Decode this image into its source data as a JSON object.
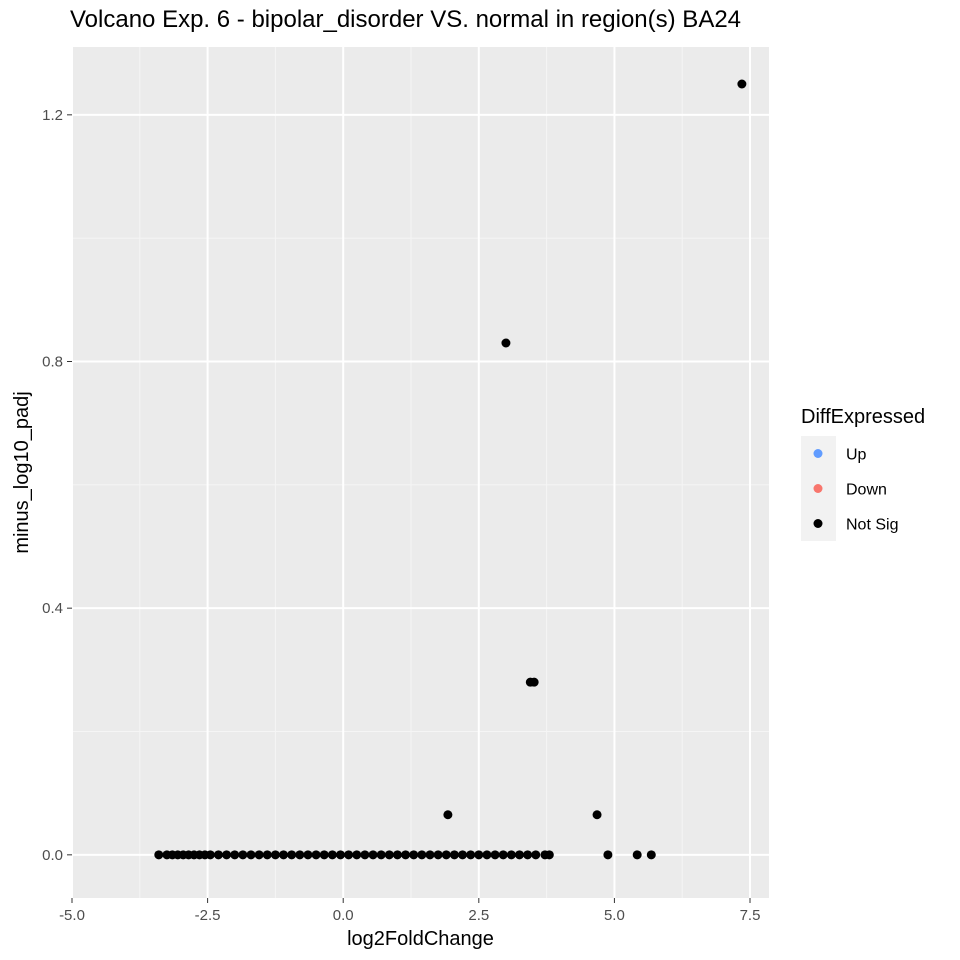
{
  "chart_data": {
    "type": "scatter",
    "title": "Volcano Exp. 6 - bipolar_disorder VS. normal in region(s) BA24",
    "xlabel": "log2FoldChange",
    "ylabel": "minus_log10_padj",
    "xlim": [
      -5.0,
      7.85
    ],
    "ylim": [
      -0.07,
      1.31
    ],
    "x_ticks": [
      -5.0,
      -2.5,
      0.0,
      2.5,
      5.0,
      7.5
    ],
    "x_tick_labels": [
      "-5.0",
      "-2.5",
      "0.0",
      "2.5",
      "5.0",
      "7.5"
    ],
    "y_ticks": [
      0.0,
      0.4,
      0.8,
      1.2
    ],
    "y_tick_labels": [
      "0.0",
      "0.4",
      "0.8",
      "1.2"
    ],
    "grid": true,
    "legend": {
      "title": "DiffExpressed",
      "placement": "right",
      "entries": [
        {
          "label": "Up",
          "color": "#619CFF"
        },
        {
          "label": "Down",
          "color": "#F8766D"
        },
        {
          "label": "Not Sig",
          "color": "#000000"
        }
      ]
    },
    "series": [
      {
        "name": "Up",
        "color": "#619CFF",
        "points": []
      },
      {
        "name": "Down",
        "color": "#F8766D",
        "points": []
      },
      {
        "name": "Not Sig",
        "color": "#000000",
        "points": [
          [
            7.35,
            1.25
          ],
          [
            3.0,
            0.83
          ],
          [
            3.45,
            0.28
          ],
          [
            3.52,
            0.28
          ],
          [
            1.93,
            0.065
          ],
          [
            4.68,
            0.065
          ],
          [
            -3.4,
            0.0
          ],
          [
            -3.25,
            0.0
          ],
          [
            -3.15,
            0.0
          ],
          [
            -3.05,
            0.0
          ],
          [
            -2.95,
            0.0
          ],
          [
            -2.85,
            0.0
          ],
          [
            -2.75,
            0.0
          ],
          [
            -2.65,
            0.0
          ],
          [
            -2.55,
            0.0
          ],
          [
            -2.45,
            0.0
          ],
          [
            -2.3,
            0.0
          ],
          [
            -2.15,
            0.0
          ],
          [
            -2.0,
            0.0
          ],
          [
            -1.85,
            0.0
          ],
          [
            -1.7,
            0.0
          ],
          [
            -1.55,
            0.0
          ],
          [
            -1.4,
            0.0
          ],
          [
            -1.25,
            0.0
          ],
          [
            -1.1,
            0.0
          ],
          [
            -0.95,
            0.0
          ],
          [
            -0.8,
            0.0
          ],
          [
            -0.65,
            0.0
          ],
          [
            -0.5,
            0.0
          ],
          [
            -0.35,
            0.0
          ],
          [
            -0.2,
            0.0
          ],
          [
            -0.05,
            0.0
          ],
          [
            0.1,
            0.0
          ],
          [
            0.25,
            0.0
          ],
          [
            0.4,
            0.0
          ],
          [
            0.55,
            0.0
          ],
          [
            0.7,
            0.0
          ],
          [
            0.85,
            0.0
          ],
          [
            1.0,
            0.0
          ],
          [
            1.15,
            0.0
          ],
          [
            1.3,
            0.0
          ],
          [
            1.45,
            0.0
          ],
          [
            1.6,
            0.0
          ],
          [
            1.75,
            0.0
          ],
          [
            1.9,
            0.0
          ],
          [
            2.05,
            0.0
          ],
          [
            2.2,
            0.0
          ],
          [
            2.35,
            0.0
          ],
          [
            2.5,
            0.0
          ],
          [
            2.65,
            0.0
          ],
          [
            2.8,
            0.0
          ],
          [
            2.95,
            0.0
          ],
          [
            3.1,
            0.0
          ],
          [
            3.25,
            0.0
          ],
          [
            3.4,
            0.0
          ],
          [
            3.55,
            0.0
          ],
          [
            3.72,
            0.0
          ],
          [
            3.8,
            0.0
          ],
          [
            4.88,
            0.0
          ],
          [
            5.42,
            0.0
          ],
          [
            5.68,
            0.0
          ]
        ]
      }
    ]
  }
}
